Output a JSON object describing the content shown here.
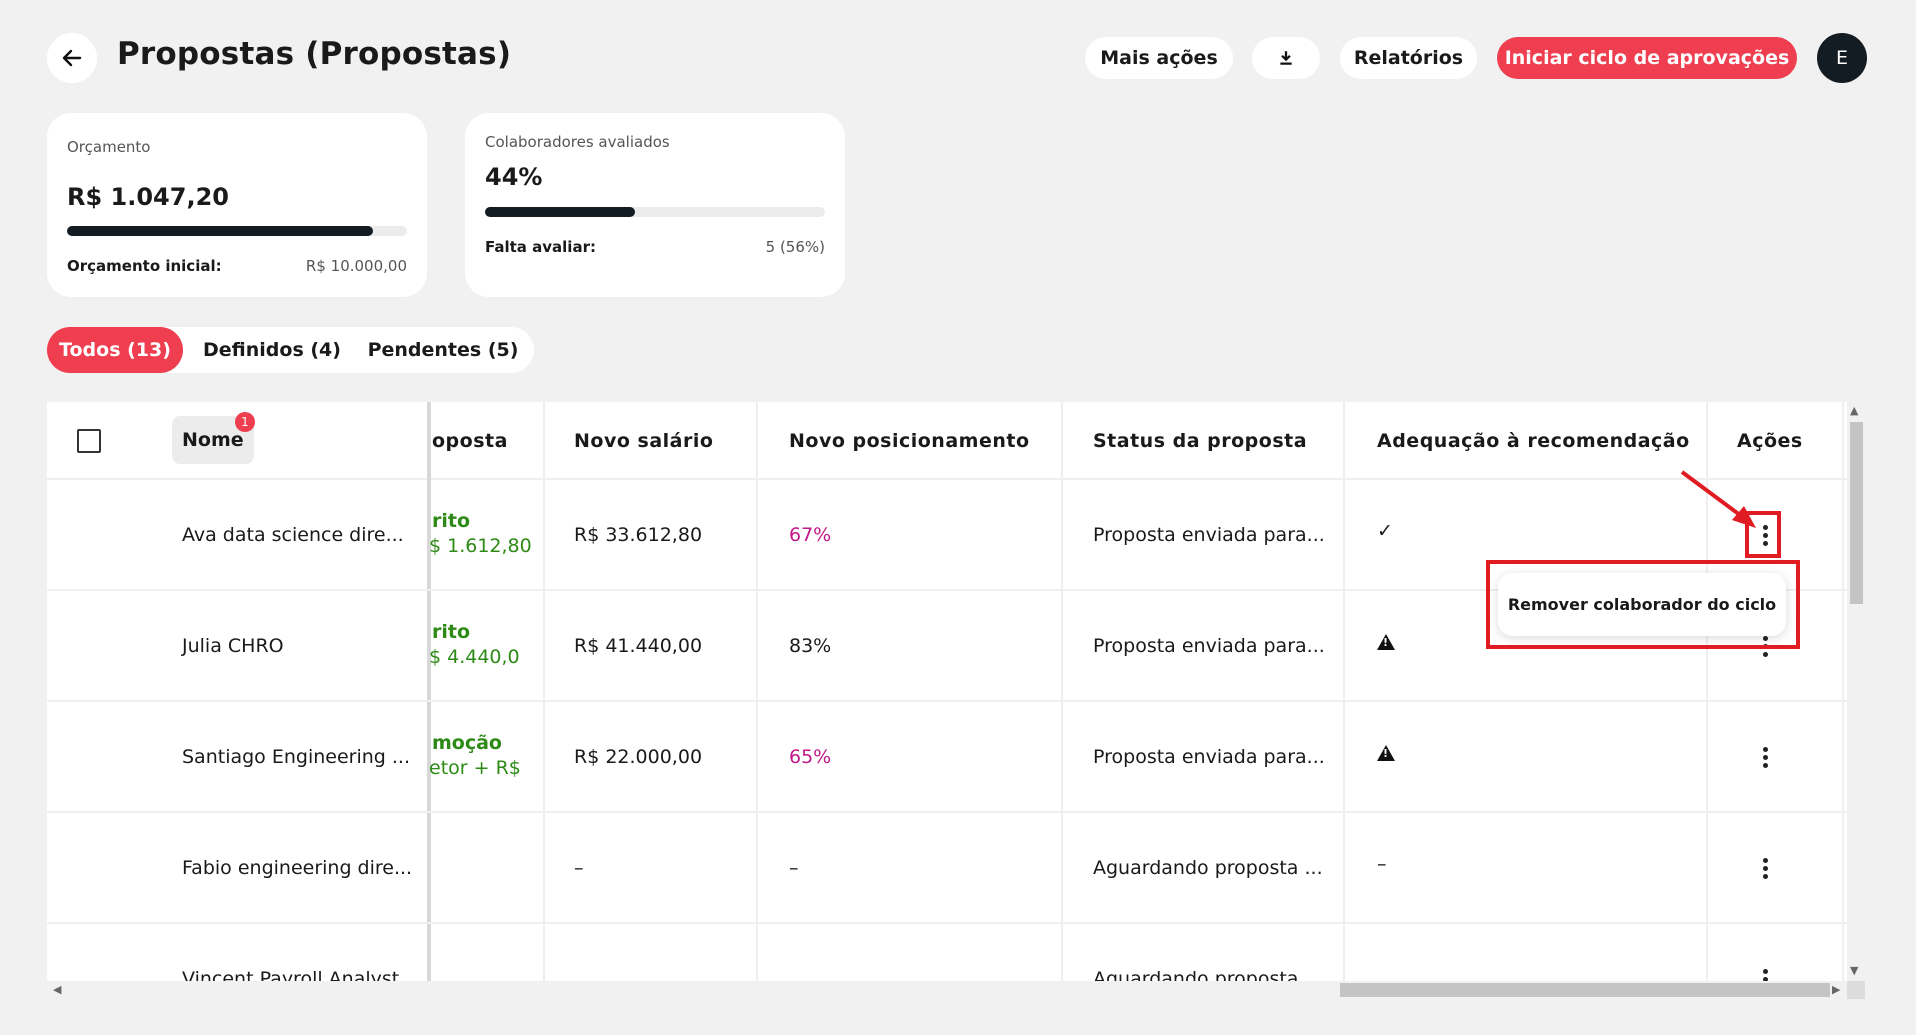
{
  "header": {
    "title": "Propostas (Propostas)",
    "more_actions": "Mais ações",
    "reports": "Relatórios",
    "start_cycle": "Iniciar ciclo de aprovações",
    "avatar_initial": "E"
  },
  "budget_card": {
    "label": "Orçamento",
    "value": "R$ 1.047,20",
    "progress": 0.9,
    "initial_label": "Orçamento inicial:",
    "initial_value": "R$ 10.000,00"
  },
  "eval_card": {
    "label": "Colaboradores avaliados",
    "value": "44%",
    "progress": 0.44,
    "pending_label": "Falta avaliar:",
    "pending_value": "5 (56%)"
  },
  "tabs": {
    "all": "Todos (13)",
    "defined": "Definidos (4)",
    "pending": "Pendentes (5)"
  },
  "table": {
    "headers": {
      "name": "Nome",
      "name_badge": "1",
      "proposal": "oposta",
      "new_salary": "Novo salário",
      "new_position": "Novo posicionamento",
      "status": "Status da proposta",
      "adequacy": "Adequação à recomendação",
      "actions": "Ações"
    },
    "rows": [
      {
        "name": "Ava data science dire...",
        "prop_title": "rito",
        "prop_sub": "$ 1.612,80",
        "salary": "R$ 33.612,80",
        "position": "67%",
        "status": "Proposta enviada para...",
        "adequacy": "✓"
      },
      {
        "name": "Julia CHRO",
        "prop_title": "rito",
        "prop_sub": "$ 4.440,0",
        "salary": "R$ 41.440,00",
        "position": "83%",
        "status": "Proposta enviada para...",
        "adequacy": ""
      },
      {
        "name": "Santiago Engineering ...",
        "prop_title": "moção",
        "prop_sub": "etor + R$",
        "salary": "R$ 22.000,00",
        "position": "65%",
        "status": "Proposta enviada para...",
        "adequacy": ""
      },
      {
        "name": "Fabio engineering dire...",
        "prop_title": "",
        "prop_sub": "",
        "salary": "–",
        "position": "–",
        "status": "Aguardando proposta ...",
        "adequacy": "–"
      },
      {
        "name": "Vincent Payroll Analyst",
        "prop_title": "",
        "prop_sub": "",
        "salary": "",
        "position": "",
        "status": "Aguardando proposta",
        "adequacy": ""
      }
    ]
  },
  "dropdown": {
    "remove": "Remover colaborador do ciclo"
  },
  "colors": {
    "accent": "#ee3e50",
    "proposal_green": "#2e8a16",
    "position_magenta": "#c2188a",
    "annotation_red": "#e11b22"
  }
}
